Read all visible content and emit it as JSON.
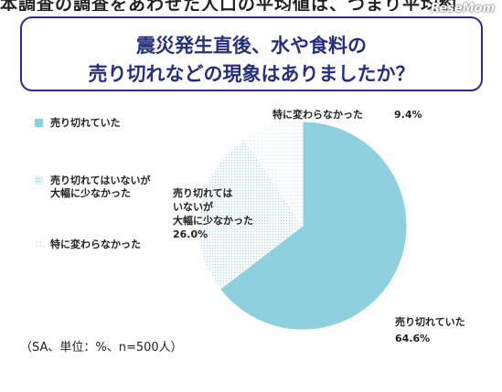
{
  "header": {
    "truncated_text": "本調査の調査をあわせた人口の平均値は、つまり平均約",
    "logo": "ReseMom"
  },
  "question": {
    "line1": "震災発生直後、水や食料の",
    "line2": "売り切れなどの現象はありましたか？"
  },
  "footnote": "（SA、単位：%、n=500人）",
  "colors": {
    "accent": "#8fd0de",
    "dot_light": "#c9e8f0",
    "frame": "#2d2d8a"
  },
  "chart_data": {
    "type": "pie",
    "title": "震災発生直後、水や食料の売り切れなどの現象はありましたか？",
    "slices": [
      {
        "name": "売り切れていた",
        "value": 64.6,
        "label_text": "売り切れていた",
        "value_text": "64.6%",
        "fill": "solid"
      },
      {
        "name": "売り切れてはいないが大幅に少なかった",
        "value": 26.0,
        "label_text": "売り切れては\nいないが\n大幅に少なかった",
        "value_text": "26.0%",
        "fill": "dots-dense"
      },
      {
        "name": "特に変わらなかった",
        "value": 9.4,
        "label_text": "特に変わらなかった",
        "value_text": "9.4%",
        "fill": "dots-sparse"
      }
    ],
    "legend": {
      "placement": "left",
      "items": [
        "売り切れていた",
        "売り切れてはいないが\n大幅に少なかった",
        "特に変わらなかった"
      ]
    }
  }
}
